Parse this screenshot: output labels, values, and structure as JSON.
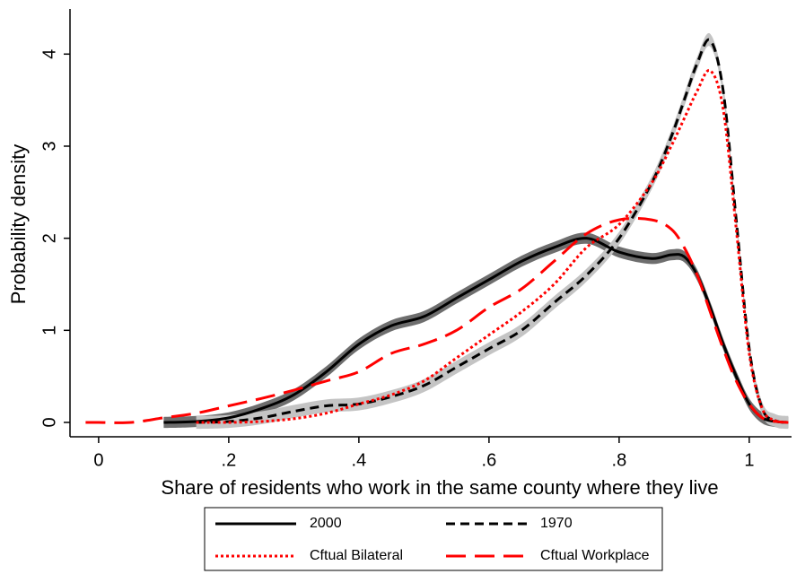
{
  "chart_data": {
    "type": "line",
    "x_label": "Share of residents who work in the same county where they live",
    "y_label": "Probability density",
    "xlim": [
      -0.044,
      1.065
    ],
    "ylim": [
      -0.156,
      4.49
    ],
    "xticks": [
      0,
      {
        "value": 0.2,
        "label": ".2"
      },
      {
        "value": 0.4,
        "label": ".4"
      },
      {
        "value": 0.6,
        "label": ".6"
      },
      {
        "value": 0.8,
        "label": ".8"
      },
      1
    ],
    "yticks": [
      0,
      1,
      2,
      3,
      4
    ],
    "x": [
      -0.02,
      0,
      0.05,
      0.1,
      0.15,
      0.2,
      0.25,
      0.3,
      0.35,
      0.4,
      0.45,
      0.5,
      0.55,
      0.6,
      0.65,
      0.7,
      0.75,
      0.8,
      0.85,
      0.88,
      0.9,
      0.92,
      0.94,
      0.96,
      0.98,
      1.0,
      1.02,
      1.04,
      1.06
    ],
    "series": [
      {
        "name": "2000",
        "color": "#000000",
        "dash": "none",
        "ci_halfwidth": 0.06,
        "band_color": "#6e6e6e",
        "values": [
          null,
          null,
          null,
          0,
          0.01,
          0.05,
          0.15,
          0.3,
          0.55,
          0.85,
          1.05,
          1.15,
          1.35,
          1.55,
          1.75,
          1.9,
          2.0,
          1.85,
          1.78,
          1.82,
          1.8,
          1.6,
          1.25,
          0.85,
          0.5,
          0.2,
          0.05,
          0.01,
          0
        ]
      },
      {
        "name": "1970",
        "color": "#000000",
        "dash": "10,6",
        "ci_halfwidth": 0.07,
        "band_color": "#c4c4c4",
        "values": [
          null,
          null,
          null,
          null,
          0,
          0.01,
          0.05,
          0.12,
          0.18,
          0.2,
          0.28,
          0.4,
          0.6,
          0.8,
          1.0,
          1.3,
          1.6,
          2.0,
          2.6,
          3.1,
          3.5,
          3.9,
          4.15,
          3.6,
          2.2,
          0.8,
          0.15,
          0.02,
          0
        ]
      },
      {
        "name": "Cftual Bilateral",
        "color": "#ff0000",
        "dash": "3,3",
        "values": [
          null,
          null,
          null,
          null,
          0,
          0,
          0.01,
          0.04,
          0.1,
          0.2,
          0.3,
          0.45,
          0.7,
          0.95,
          1.2,
          1.5,
          1.9,
          2.15,
          2.6,
          3.0,
          3.3,
          3.6,
          3.82,
          3.4,
          2.1,
          0.75,
          0.15,
          0.02,
          0
        ]
      },
      {
        "name": "Cftual Workplace",
        "color": "#ff0000",
        "dash": "22,10",
        "values": [
          0,
          0,
          0,
          0.05,
          0.1,
          0.18,
          0.26,
          0.35,
          0.45,
          0.55,
          0.75,
          0.85,
          1.0,
          1.25,
          1.45,
          1.75,
          2.05,
          2.2,
          2.2,
          2.1,
          1.9,
          1.6,
          1.2,
          0.8,
          0.45,
          0.2,
          0.05,
          0.01,
          0
        ]
      }
    ]
  }
}
